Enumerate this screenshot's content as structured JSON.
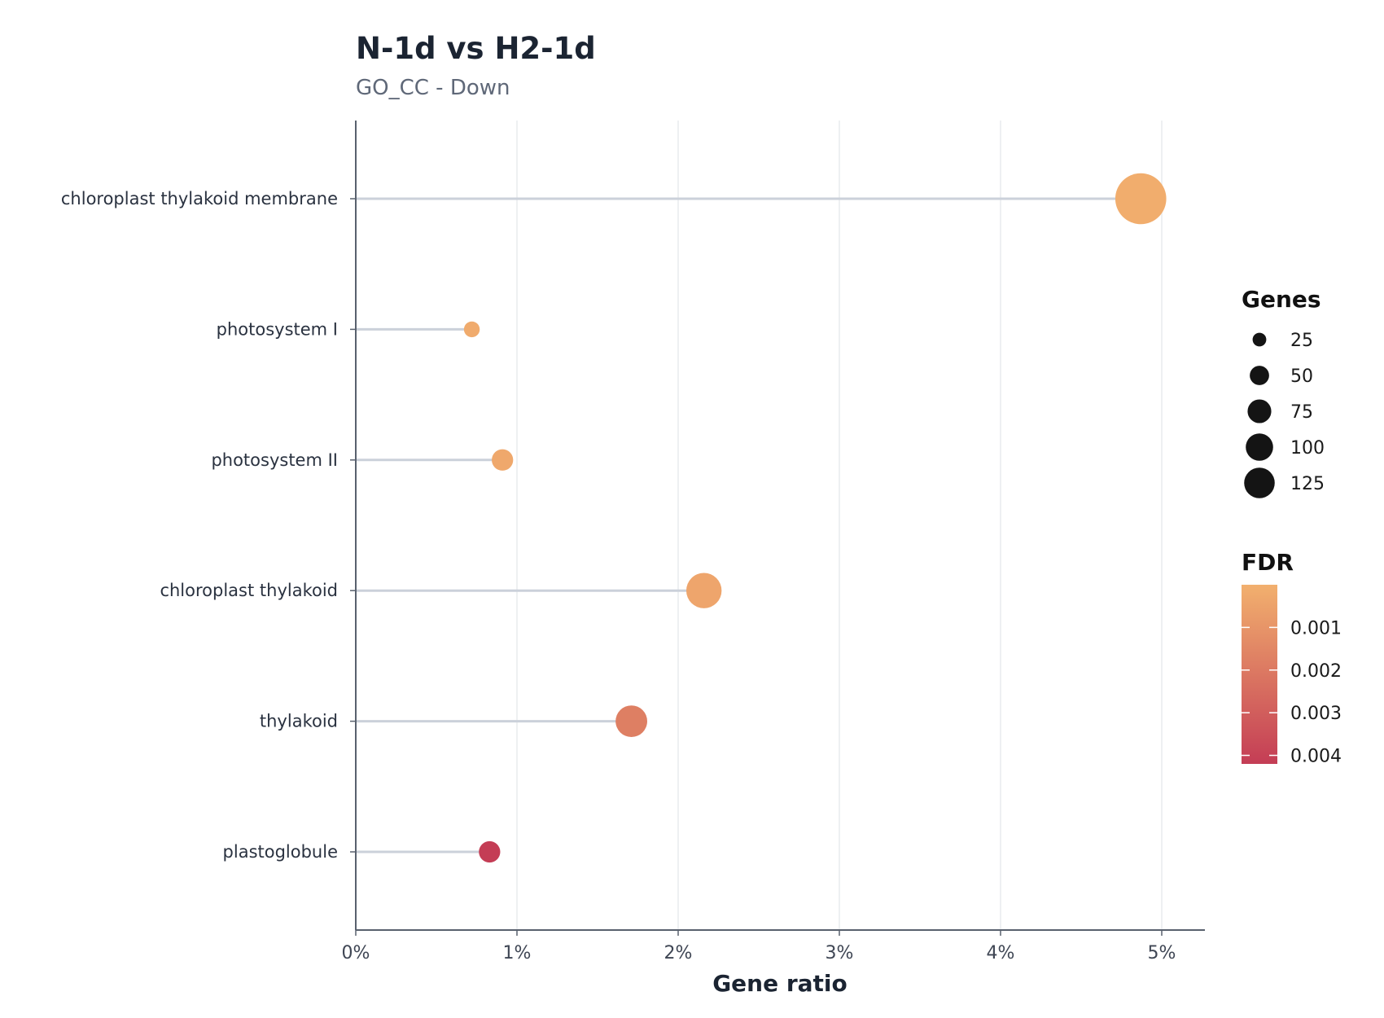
{
  "chart_data": {
    "type": "lollipop",
    "title": "N-1d vs H2-1d",
    "subtitle": "GO_CC - Down",
    "xlabel": "Gene ratio",
    "ylabel": "",
    "xlim": [
      0,
      0.0525
    ],
    "x_ticks": [
      0,
      0.01,
      0.02,
      0.03,
      0.04,
      0.05
    ],
    "x_tick_labels": [
      "0%",
      "1%",
      "2%",
      "3%",
      "4%",
      "5%"
    ],
    "grid": "vertical",
    "categories": [
      "chloroplast thylakoid membrane",
      "photosystem I",
      "photosystem II",
      "chloroplast thylakoid",
      "thylakoid",
      "plastoglobule"
    ],
    "gene_ratio": [
      0.0487,
      0.0072,
      0.0091,
      0.0216,
      0.0171,
      0.0083
    ],
    "genes": [
      125,
      12,
      22,
      60,
      48,
      22
    ],
    "fdr": [
      0.0001,
      0.0002,
      0.0003,
      0.0004,
      0.0018,
      0.0042
    ],
    "size_legend": {
      "title": "Genes",
      "values": [
        25,
        50,
        75,
        100,
        125
      ],
      "labels": [
        "25",
        "50",
        "75",
        "100",
        "125"
      ]
    },
    "color_legend": {
      "title": "FDR",
      "range": [
        0,
        0.0042
      ],
      "ticks": [
        0.001,
        0.002,
        0.003,
        0.004
      ],
      "tick_labels": [
        "0.001",
        "0.002",
        "0.003",
        "0.004"
      ],
      "low_color": "#f2b06e",
      "high_color": "#c43d55"
    },
    "colors": {
      "stem": "#cbd1da",
      "axis": "#59616e",
      "grid": "#e9ebee",
      "size_legend_dot": "#141414"
    }
  }
}
